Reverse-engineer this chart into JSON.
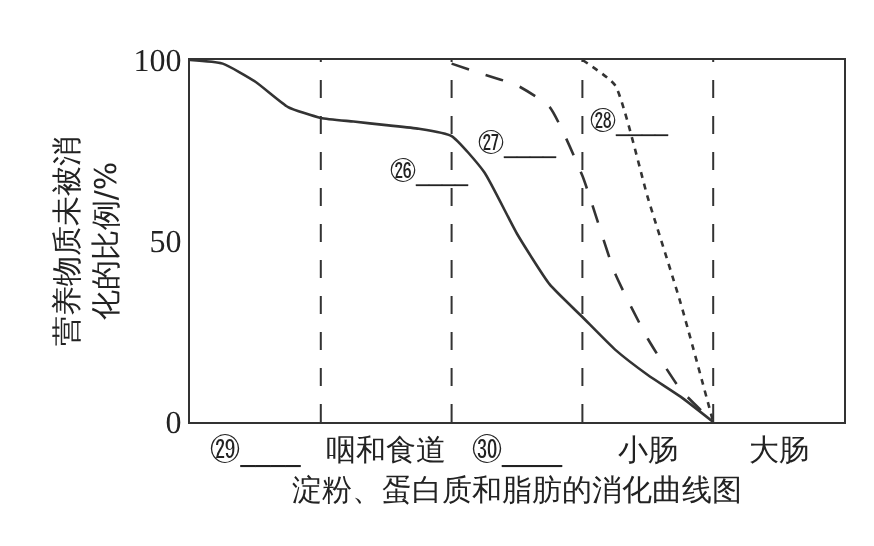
{
  "chart_data": {
    "type": "line",
    "xlabel": "淀粉、蛋白质和脂肪的消化曲线图",
    "ylabel": "营养物质未被消化的比例/%",
    "categories": [
      null,
      null,
      "㉙____",
      null,
      null,
      null,
      "咽和食道",
      null,
      null,
      null,
      "㉚____",
      null,
      null,
      null,
      "小肠",
      null,
      null,
      null,
      "大肠",
      null,
      null
    ],
    "ylim": [
      0,
      100
    ],
    "yticks": [
      0,
      50,
      100
    ],
    "grid": "x",
    "marker": "none",
    "series": [
      {
        "color": "#333333",
        "line_style": "solid",
        "values": [
          100,
          99,
          94,
          87,
          84,
          83,
          82,
          81,
          79,
          69,
          52,
          38,
          29,
          20,
          13,
          7,
          0,
          null,
          null,
          null,
          null
        ]
      },
      {
        "color": "#333333",
        "line_style": "dashed",
        "values": [
          null,
          null,
          null,
          null,
          null,
          null,
          null,
          null,
          99,
          96,
          93,
          87,
          68,
          41,
          23,
          9,
          0,
          null,
          null,
          null,
          null
        ]
      },
      {
        "color": "#333333",
        "line_style": "dotted",
        "values": [
          null,
          null,
          null,
          null,
          null,
          null,
          null,
          null,
          null,
          null,
          null,
          null,
          100,
          93,
          62,
          33,
          0,
          null,
          null,
          null,
          null
        ]
      }
    ],
    "annotations": [
      "㉖____",
      "㉗____",
      "㉘____"
    ]
  }
}
